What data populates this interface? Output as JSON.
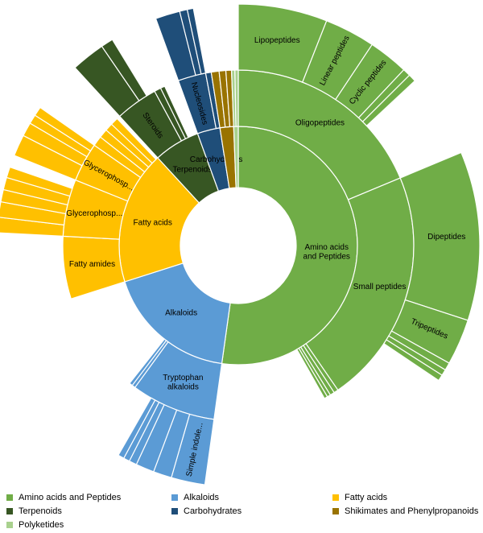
{
  "chart_data": {
    "type": "sunburst",
    "title": "",
    "colors": {
      "Amino acids and Peptides": "#70ad47",
      "Alkaloids": "#5b9bd5",
      "Fatty acids": "#ffc000",
      "Terpenoids": "#375623",
      "Carbohydrates": "#1f4e79",
      "Shikimates and Phenylpropanoids": "#997300",
      "Polyketides": "#a9d18e"
    },
    "tree": [
      {
        "name": "Amino acids and Peptides",
        "label": "Amino acids and Peptides",
        "value": 50.8,
        "children": [
          {
            "name": "Oligopeptides",
            "label": "Oligopeptides",
            "value": 18.2,
            "children": [
              {
                "name": "Lipopeptides",
                "label": "Lipopeptides",
                "value": 5.8
              },
              {
                "name": "Linear peptides",
                "label": "Linear peptides",
                "value": 3.3
              },
              {
                "name": "Cyclic peptides",
                "label": "Cyclic peptides",
                "value": 2.6
              },
              {
                "name": "oligo-minor-1",
                "label": "",
                "value": 0.5
              },
              {
                "name": "oligo-minor-2",
                "label": "",
                "value": 0.5
              }
            ]
          },
          {
            "name": "Small peptides",
            "label": "Small peptides",
            "value": 21.1,
            "children": [
              {
                "name": "Dipeptides",
                "label": "Dipeptides",
                "value": 11.0
              },
              {
                "name": "Tripeptides",
                "label": "Tripeptides",
                "value": 3.0
              },
              {
                "name": "small-minor-1",
                "label": "",
                "value": 0.5
              },
              {
                "name": "small-minor-2",
                "label": "",
                "value": 0.4
              },
              {
                "name": "small-minor-3",
                "label": "",
                "value": 0.4
              }
            ]
          },
          {
            "name": "aa-minor-1",
            "label": "",
            "value": 0.4
          },
          {
            "name": "aa-minor-2",
            "label": "",
            "value": 0.4
          },
          {
            "name": "aa-minor-3",
            "label": "",
            "value": 0.3
          },
          {
            "name": "aa-minor-4",
            "label": "",
            "value": 0.3
          }
        ]
      },
      {
        "name": "Alkaloids",
        "label": "Alkaloids",
        "value": 17.4,
        "children": [
          {
            "name": "Tryptophan alkaloids",
            "label": "Tryptophan alkaloids",
            "value": 7.6,
            "children": [
              {
                "name": "Simple indole...",
                "label": "Simple indole...",
                "value": 2.2
              },
              {
                "name": "trp-minor-1",
                "label": "",
                "value": 1.2
              },
              {
                "name": "trp-minor-2",
                "label": "",
                "value": 1.2
              },
              {
                "name": "trp-minor-3",
                "label": "",
                "value": 0.5
              },
              {
                "name": "trp-minor-4",
                "label": "",
                "value": 0.4
              },
              {
                "name": "trp-minor-5",
                "label": "",
                "value": 0.4
              }
            ]
          },
          {
            "name": "alk-minor-1",
            "label": "",
            "value": 0.3
          },
          {
            "name": "alk-minor-2",
            "label": "",
            "value": 0.3
          }
        ]
      },
      {
        "name": "Fatty acids",
        "label": "Fatty acids",
        "value": 17.6,
        "children": [
          {
            "name": "Fatty amides",
            "label": "Fatty amides",
            "value": 5.6
          },
          {
            "name": "Glycerophosp...(2)",
            "label": "Glycerophosp...",
            "value": 5.1,
            "children": [
              {
                "name": "gp2-minor-1",
                "label": "",
                "value": 1.0
              },
              {
                "name": "gp2-minor-2",
                "label": "",
                "value": 1.0
              },
              {
                "name": "gp2-minor-3",
                "label": "",
                "value": 0.8
              },
              {
                "name": "gp2-minor-4",
                "label": "",
                "value": 0.8
              },
              {
                "name": "gp2-minor-5",
                "label": "",
                "value": 0.7
              }
            ]
          },
          {
            "name": "Glycerophosp...(1)",
            "label": "Glycerophosp...",
            "value": 3.5,
            "children": [
              {
                "name": "gp1-minor-1",
                "label": "",
                "value": 1.4
              },
              {
                "name": "gp1-minor-2",
                "label": "",
                "value": 0.9
              },
              {
                "name": "gp1-minor-3",
                "label": "",
                "value": 0.6
              },
              {
                "name": "gp1-minor-4",
                "label": "",
                "value": 0.6
              }
            ]
          },
          {
            "name": "fa-minor-1",
            "label": "",
            "value": 0.9
          },
          {
            "name": "fa-minor-2",
            "label": "",
            "value": 0.8
          },
          {
            "name": "fa-minor-3",
            "label": "",
            "value": 0.7
          },
          {
            "name": "fa-minor-4",
            "label": "",
            "value": 0.7
          }
        ]
      },
      {
        "name": "Terpenoids",
        "label": "Terpenoids",
        "value": 6.1,
        "children": [
          {
            "name": "Steroids",
            "label": "Steroids",
            "value": 3.8,
            "children": [
              {
                "name": "ster-minor-1",
                "label": "",
                "value": 2.2
              },
              {
                "name": "ster-minor-2",
                "label": "",
                "value": 0.8
              }
            ]
          },
          {
            "name": "ter-minor-1",
            "label": "",
            "value": 0.6
          },
          {
            "name": "ter-minor-2",
            "label": "",
            "value": 0.4
          }
        ]
      },
      {
        "name": "Carbohydrates",
        "label": "Carbohydrates",
        "value": 3.0,
        "children": [
          {
            "name": "Nucleosides",
            "label": "Nucleosides",
            "value": 2.5,
            "children": [
              {
                "name": "nuc-minor-1",
                "label": "",
                "value": 1.6
              },
              {
                "name": "nuc-minor-2",
                "label": "",
                "value": 0.5
              },
              {
                "name": "nuc-minor-3",
                "label": "",
                "value": 0.4
              }
            ]
          },
          {
            "name": "carb-minor-1",
            "label": "",
            "value": 0.5
          }
        ]
      },
      {
        "name": "Shikimates and Phenylpropanoids",
        "label": "",
        "value": 1.8,
        "children": [
          {
            "name": "shik-minor-1",
            "label": "",
            "value": 0.7
          },
          {
            "name": "shik-minor-2",
            "label": "",
            "value": 0.6
          },
          {
            "name": "shik-minor-3",
            "label": "",
            "value": 0.5
          }
        ]
      },
      {
        "name": "Polyketides",
        "label": "",
        "value": 0.6,
        "children": [
          {
            "name": "pk-minor-1",
            "label": "",
            "value": 0.3
          },
          {
            "name": "pk-minor-2",
            "label": "",
            "value": 0.3
          }
        ]
      }
    ],
    "legend": {
      "placement": "bottom",
      "items": [
        {
          "label": "Amino acids and Peptides",
          "color": "#70ad47"
        },
        {
          "label": "Alkaloids",
          "color": "#5b9bd5"
        },
        {
          "label": "Fatty acids",
          "color": "#ffc000"
        },
        {
          "label": "Terpenoids",
          "color": "#375623"
        },
        {
          "label": "Carbohydrates",
          "color": "#1f4e79"
        },
        {
          "label": "Shikimates and Phenylpropanoids",
          "color": "#997300"
        },
        {
          "label": "Polyketides",
          "color": "#a9d18e"
        }
      ]
    }
  }
}
